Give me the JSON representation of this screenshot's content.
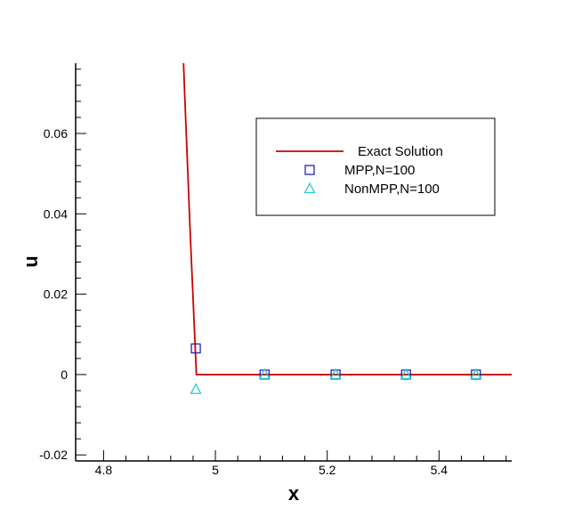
{
  "chart_data": {
    "type": "line",
    "xlabel": "x",
    "ylabel": "u",
    "xlim": [
      4.75,
      5.53
    ],
    "ylim": [
      -0.0215,
      0.0775
    ],
    "grid": false,
    "legend_position": "top-right",
    "x_ticks": [
      4.8,
      5,
      5.2,
      5.4
    ],
    "x_tick_labels": [
      "4.8",
      "5",
      "5.2",
      "5.4"
    ],
    "y_ticks": [
      -0.02,
      0,
      0.02,
      0.04,
      0.06
    ],
    "y_tick_labels": [
      "-0.02",
      "0",
      "0.02",
      "0.04",
      "0.06"
    ],
    "series": [
      {
        "name": "Exact Solution",
        "style": "line",
        "color": "#cc0000",
        "x": [
          4.943,
          4.945,
          4.955,
          4.966,
          4.97,
          5.1,
          5.3,
          5.53
        ],
        "y": [
          0.0775,
          0.07,
          0.035,
          0.0,
          0.0,
          0.0,
          0.0,
          0.0
        ]
      },
      {
        "name": "MPP,N=100",
        "style": "square",
        "color": "#2222bb",
        "x": [
          4.965,
          5.088,
          5.215,
          5.341,
          5.466
        ],
        "y": [
          0.0065,
          0.0,
          0.0,
          0.0,
          0.0
        ]
      },
      {
        "name": "NonMPP,N=100",
        "style": "triangle",
        "color": "#22cccc",
        "x": [
          4.965,
          5.088,
          5.215,
          5.341,
          5.466
        ],
        "y": [
          -0.0037,
          0.0,
          0.0,
          0.0,
          0.0
        ]
      }
    ]
  }
}
